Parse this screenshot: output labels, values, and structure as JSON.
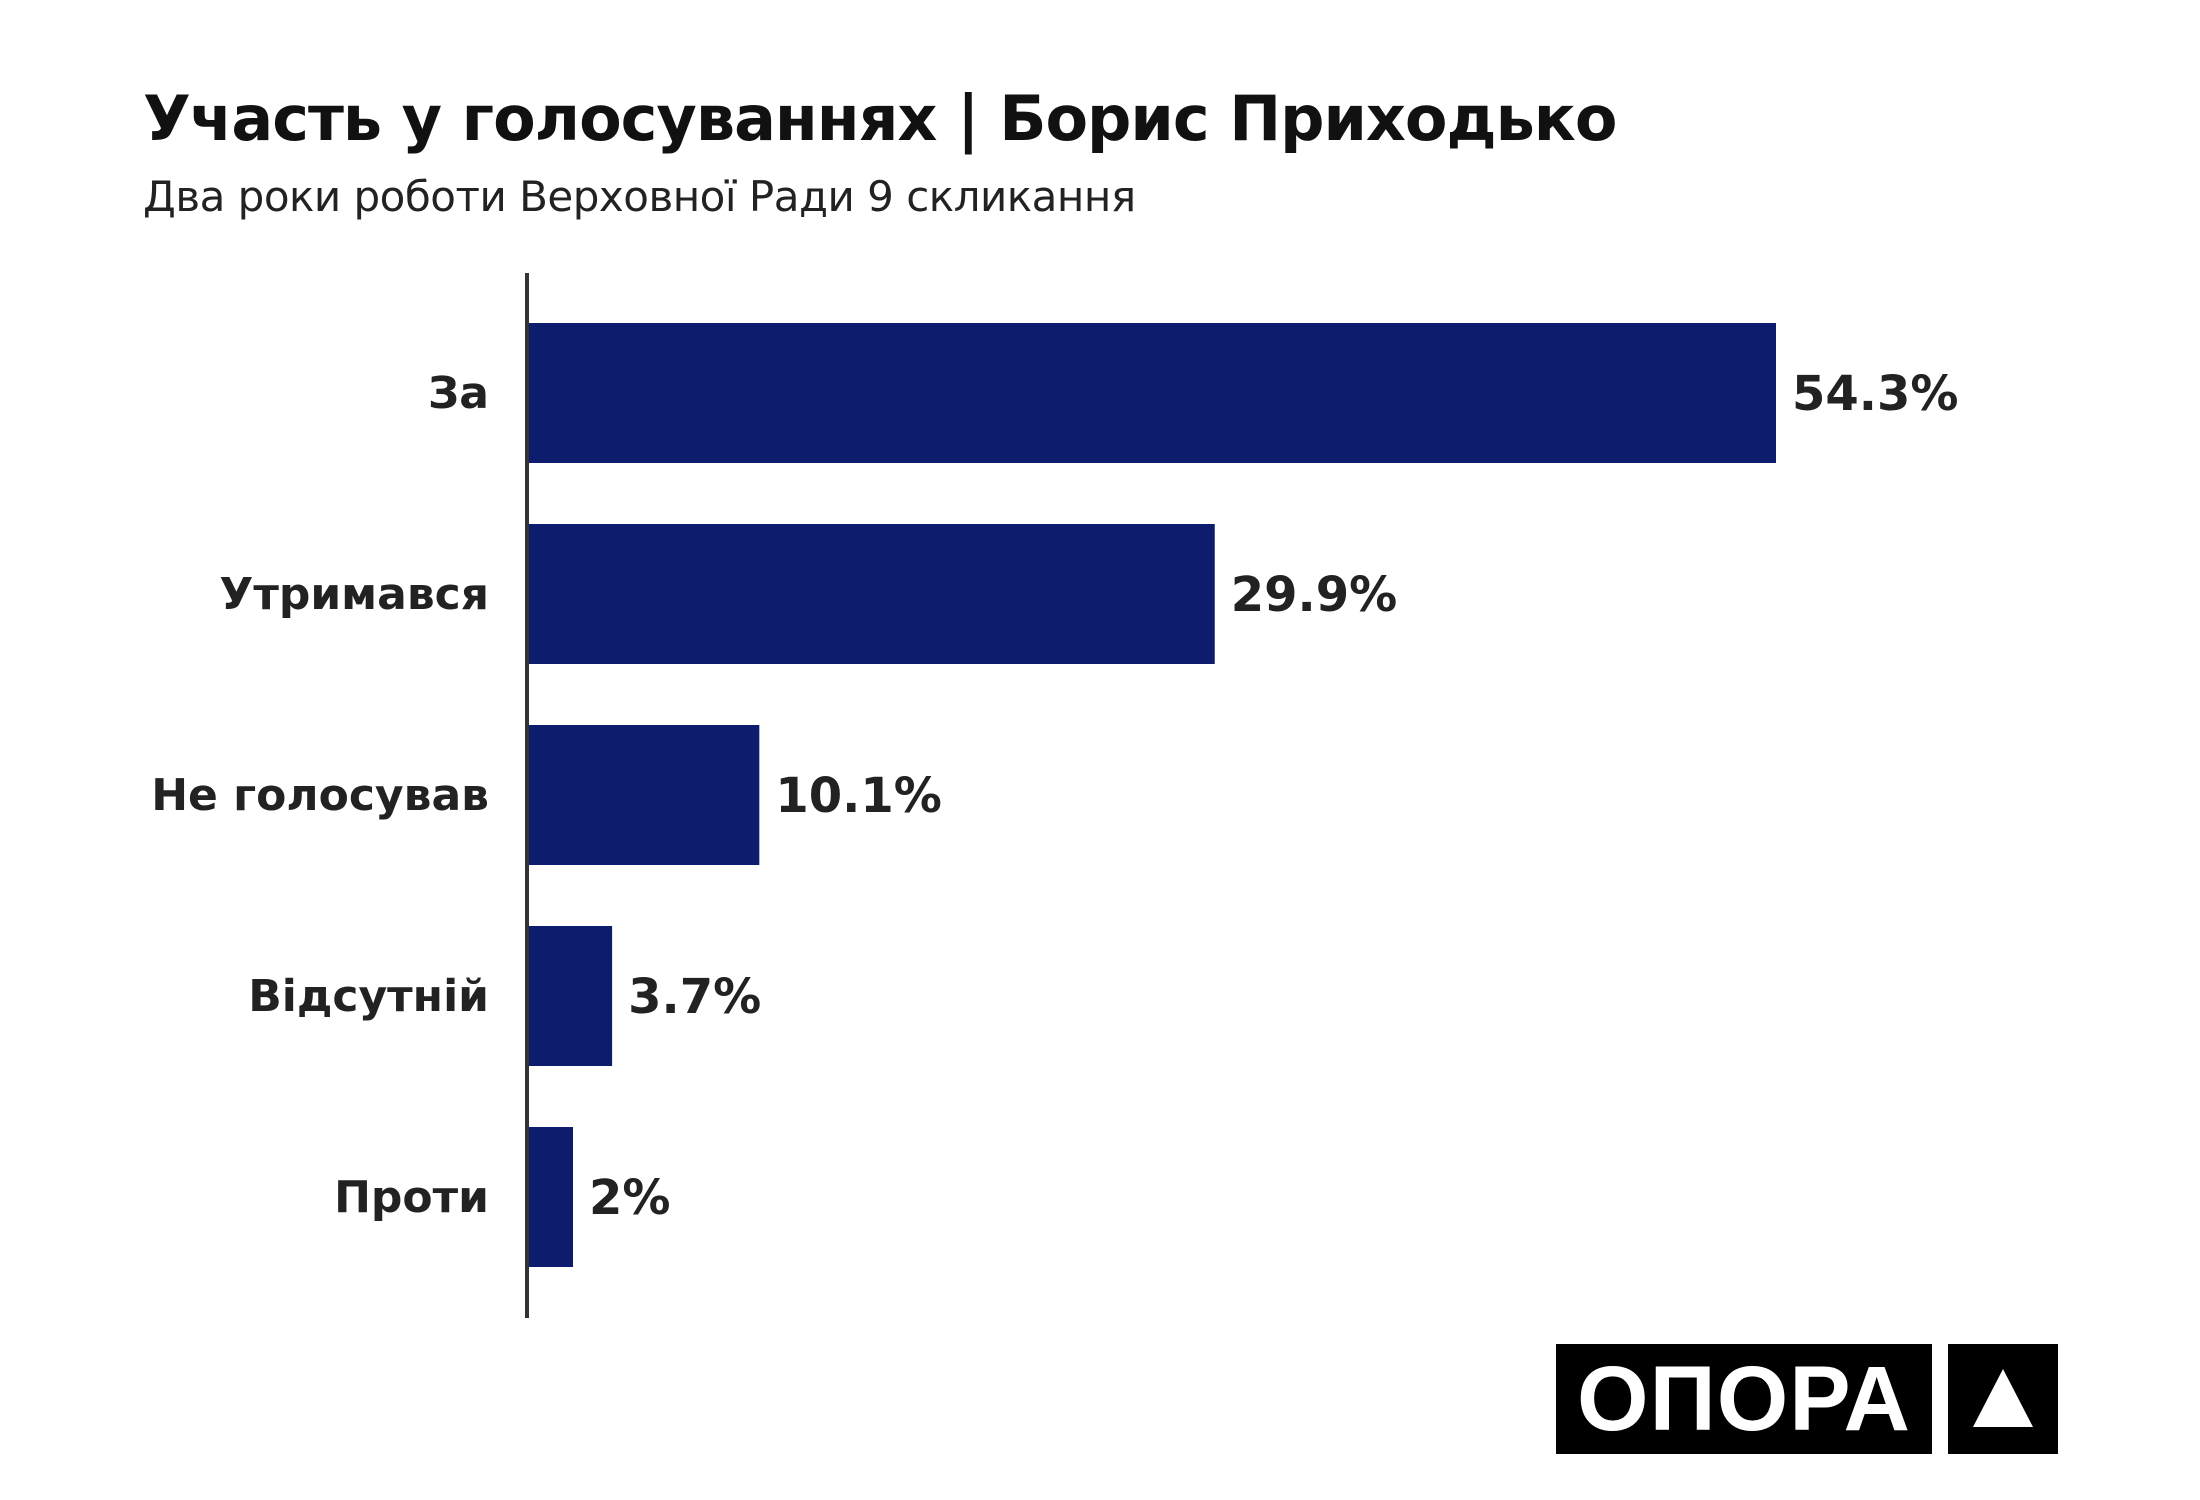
{
  "chart_data": {
    "type": "bar",
    "orientation": "horizontal",
    "title": "Участь у голосуваннях | Борис Приходько",
    "subtitle": "Два роки роботи Верховної Ради 9 скликання",
    "categories": [
      "За",
      "Утримався",
      "Не голосував",
      "Відсутній",
      "Проти"
    ],
    "values": [
      54.3,
      29.9,
      10.1,
      3.7,
      2
    ],
    "value_labels": [
      "54.3%",
      "29.9%",
      "10.1%",
      "3.7%",
      "2%"
    ],
    "xlabel": "",
    "ylabel": "",
    "xlim": [
      0,
      54.3
    ],
    "grid": false,
    "bar_color": "#0e1c6e"
  },
  "logo": {
    "text": "ОПОРА"
  }
}
